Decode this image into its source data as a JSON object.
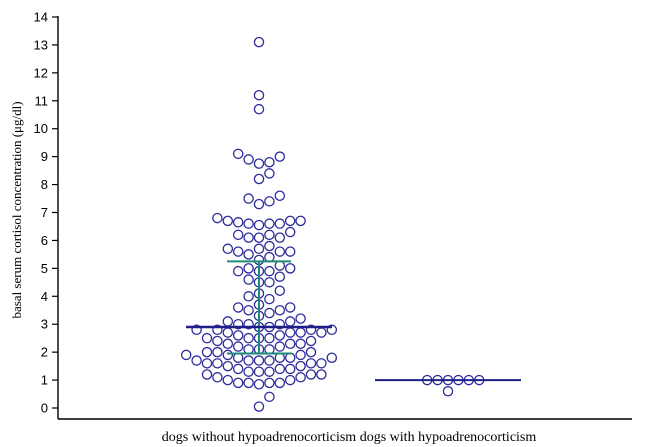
{
  "chart_data": {
    "type": "scatter",
    "ylabel": "basal serum cortisol concentration (μg/dl)",
    "xlabel": "",
    "ylim": [
      -0.2,
      14.3
    ],
    "yticks": [
      0,
      1,
      2,
      3,
      4,
      5,
      6,
      7,
      8,
      9,
      10,
      11,
      12,
      13,
      14
    ],
    "grid": false,
    "colors": {
      "points": "#2b2b9a",
      "median": "#1f1f8a",
      "iqr": "#1f8a7a",
      "axis": "#000000"
    },
    "groups": [
      {
        "label": "dogs without hypoadrenocorticism",
        "median": 2.9,
        "q1": 1.95,
        "q3": 5.25,
        "values": [
          13.1,
          11.2,
          10.7,
          9.1,
          9.0,
          8.9,
          8.8,
          8.75,
          8.4,
          8.2,
          7.6,
          7.5,
          7.4,
          7.3,
          6.8,
          6.7,
          6.7,
          6.7,
          6.65,
          6.6,
          6.6,
          6.6,
          6.55,
          6.3,
          6.2,
          6.2,
          6.1,
          6.1,
          6.1,
          5.8,
          5.7,
          5.7,
          5.6,
          5.6,
          5.6,
          5.5,
          5.4,
          5.3,
          5.1,
          5.0,
          5.0,
          4.9,
          4.9,
          4.9,
          4.7,
          4.6,
          4.5,
          4.5,
          4.2,
          4.1,
          4.0,
          3.9,
          3.7,
          3.6,
          3.6,
          3.5,
          3.5,
          3.4,
          3.3,
          3.2,
          3.1,
          3.1,
          3.0,
          3.0,
          3.0,
          2.9,
          2.9,
          2.8,
          2.8,
          2.8,
          2.8,
          2.7,
          2.7,
          2.7,
          2.7,
          2.6,
          2.6,
          2.5,
          2.5,
          2.5,
          2.5,
          2.4,
          2.4,
          2.3,
          2.3,
          2.3,
          2.2,
          2.2,
          2.1,
          2.1,
          2.1,
          2.0,
          2.0,
          2.0,
          1.9,
          1.9,
          1.9,
          1.8,
          1.8,
          1.8,
          1.8,
          1.7,
          1.7,
          1.7,
          1.7,
          1.6,
          1.6,
          1.6,
          1.6,
          1.5,
          1.5,
          1.4,
          1.4,
          1.4,
          1.3,
          1.3,
          1.3,
          1.2,
          1.2,
          1.2,
          1.1,
          1.1,
          1.0,
          1.0,
          0.9,
          0.9,
          0.9,
          0.9,
          0.85,
          0.4,
          0.05
        ]
      },
      {
        "label": "dogs with hypoadrenocorticism",
        "median": 1.0,
        "q1": 1.0,
        "q3": 1.0,
        "values": [
          1.0,
          1.0,
          1.0,
          1.0,
          1.0,
          1.0,
          0.6
        ]
      }
    ]
  }
}
